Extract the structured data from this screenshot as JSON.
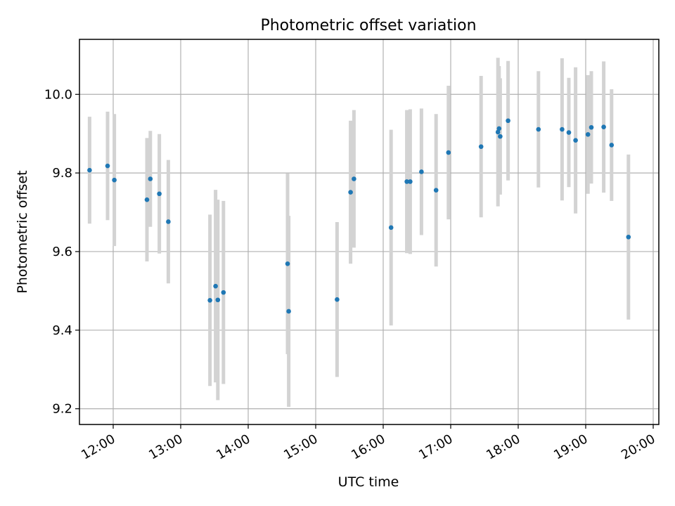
{
  "chart_data": {
    "type": "scatter",
    "title": "Photometric offset variation",
    "xlabel": "UTC time",
    "ylabel": "Photometric offset",
    "x_unit": "hours UTC",
    "xlim": [
      "11:30",
      "20:05"
    ],
    "ylim": [
      9.16,
      10.14
    ],
    "x_ticks": [
      "12:00",
      "13:00",
      "14:00",
      "15:00",
      "16:00",
      "17:00",
      "18:00",
      "19:00",
      "20:00"
    ],
    "y_ticks": [
      "9.2",
      "9.4",
      "9.6",
      "9.8",
      "10.0"
    ],
    "grid": true,
    "legend": "none",
    "colors": {
      "marker": "#1f77b4",
      "errorbar": "#d3d3d3",
      "grid": "#b0b0b0"
    },
    "series": [
      {
        "points": [
          {
            "x": "11:39",
            "y": 9.807,
            "err": 0.136
          },
          {
            "x": "11:55",
            "y": 9.818,
            "err": 0.138
          },
          {
            "x": "12:01",
            "y": 9.782,
            "err": 0.168
          },
          {
            "x": "12:30",
            "y": 9.732,
            "err": 0.157
          },
          {
            "x": "12:33",
            "y": 9.785,
            "err": 0.122
          },
          {
            "x": "12:41",
            "y": 9.747,
            "err": 0.152
          },
          {
            "x": "12:49",
            "y": 9.676,
            "err": 0.157
          },
          {
            "x": "13:26",
            "y": 9.476,
            "err": 0.218
          },
          {
            "x": "13:31",
            "y": 9.512,
            "err": 0.245
          },
          {
            "x": "13:33",
            "y": 9.477,
            "err": 0.255
          },
          {
            "x": "13:38",
            "y": 9.496,
            "err": 0.233
          },
          {
            "x": "14:35",
            "y": 9.569,
            "err": 0.23
          },
          {
            "x": "14:36",
            "y": 9.448,
            "err": 0.243
          },
          {
            "x": "15:19",
            "y": 9.478,
            "err": 0.197
          },
          {
            "x": "15:31",
            "y": 9.751,
            "err": 0.182
          },
          {
            "x": "15:34",
            "y": 9.785,
            "err": 0.175
          },
          {
            "x": "16:07",
            "y": 9.661,
            "err": 0.249
          },
          {
            "x": "16:21",
            "y": 9.778,
            "err": 0.182
          },
          {
            "x": "16:24",
            "y": 9.778,
            "err": 0.184
          },
          {
            "x": "16:34",
            "y": 9.803,
            "err": 0.161
          },
          {
            "x": "16:47",
            "y": 9.756,
            "err": 0.194
          },
          {
            "x": "16:58",
            "y": 9.852,
            "err": 0.17
          },
          {
            "x": "17:27",
            "y": 9.867,
            "err": 0.18
          },
          {
            "x": "17:42",
            "y": 9.904,
            "err": 0.189
          },
          {
            "x": "17:43",
            "y": 9.913,
            "err": 0.159
          },
          {
            "x": "17:44",
            "y": 9.893,
            "err": 0.148
          },
          {
            "x": "17:51",
            "y": 9.933,
            "err": 0.152
          },
          {
            "x": "18:18",
            "y": 9.911,
            "err": 0.148
          },
          {
            "x": "18:39",
            "y": 9.911,
            "err": 0.181
          },
          {
            "x": "18:45",
            "y": 9.903,
            "err": 0.139
          },
          {
            "x": "18:51",
            "y": 9.883,
            "err": 0.186
          },
          {
            "x": "19:02",
            "y": 9.898,
            "err": 0.151
          },
          {
            "x": "19:05",
            "y": 9.916,
            "err": 0.143
          },
          {
            "x": "19:16",
            "y": 9.917,
            "err": 0.167
          },
          {
            "x": "19:23",
            "y": 9.871,
            "err": 0.142
          },
          {
            "x": "19:38",
            "y": 9.637,
            "err": 0.21
          }
        ]
      }
    ]
  }
}
